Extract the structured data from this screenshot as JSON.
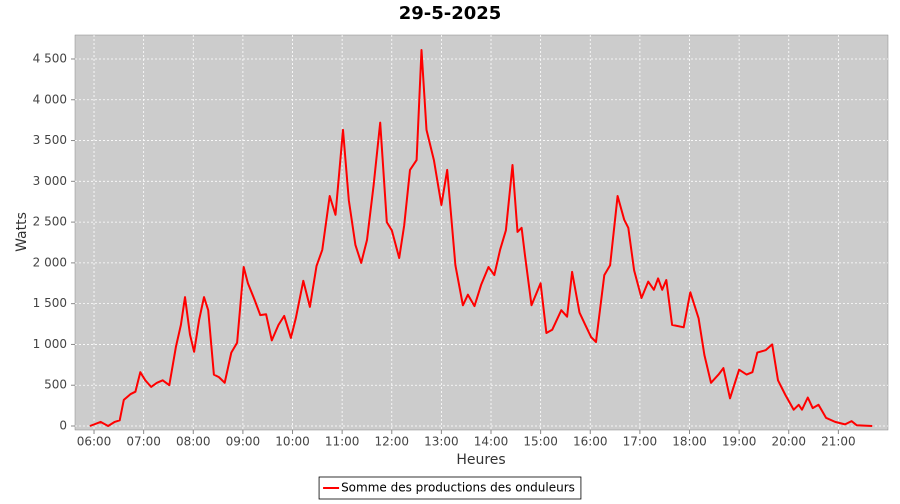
{
  "chart_data": {
    "type": "line",
    "title": "29-5-2025",
    "xlabel": "Heures",
    "ylabel": "Watts",
    "grid": true,
    "legend": "bottom",
    "xlim": [
      "05:37",
      "22:00"
    ],
    "xticks": [
      "06:00",
      "07:00",
      "08:00",
      "09:00",
      "10:00",
      "11:00",
      "12:00",
      "13:00",
      "14:00",
      "15:00",
      "16:00",
      "17:00",
      "18:00",
      "19:00",
      "20:00",
      "21:00"
    ],
    "ylim": [
      -49,
      4794
    ],
    "yticks": [
      0,
      500,
      {
        "value": 1000,
        "label": "1 000"
      },
      {
        "value": 1500,
        "label": "1 500"
      },
      {
        "value": 2000,
        "label": "2 000"
      },
      {
        "value": 2500,
        "label": "2 500"
      },
      {
        "value": 3000,
        "label": "3 000"
      },
      {
        "value": 3500,
        "label": "3 500"
      },
      {
        "value": 4000,
        "label": "4 000"
      },
      {
        "value": 4500,
        "label": "4 500"
      }
    ],
    "x": [
      "05:55",
      "06:08",
      "06:17",
      "06:25",
      "06:31",
      "06:36",
      "06:44",
      "06:50",
      "06:56",
      "07:02",
      "07:09",
      "07:16",
      "07:23",
      "07:31",
      "07:39",
      "07:45",
      "07:50",
      "07:56",
      "08:01",
      "08:07",
      "08:13",
      "08:18",
      "08:25",
      "08:31",
      "08:38",
      "08:46",
      "08:53",
      "09:01",
      "09:06",
      "09:14",
      "09:21",
      "09:28",
      "09:35",
      "09:43",
      "09:50",
      "09:58",
      "10:04",
      "10:13",
      "10:21",
      "10:29",
      "10:36",
      "10:45",
      "10:52",
      "11:01",
      "11:08",
      "11:16",
      "11:23",
      "11:30",
      "11:38",
      "11:46",
      "11:54",
      "12:00",
      "12:09",
      "12:15",
      "12:22",
      "12:30",
      "12:36",
      "12:42",
      "12:51",
      "13:00",
      "13:07",
      "13:17",
      "13:26",
      "13:32",
      "13:40",
      "13:48",
      "13:57",
      "14:04",
      "14:11",
      "14:18",
      "14:26",
      "14:32",
      "14:37",
      "14:41",
      "14:49",
      "15:00",
      "15:07",
      "15:14",
      "15:25",
      "15:32",
      "15:38",
      "15:47",
      "15:54",
      "16:01",
      "16:07",
      "16:17",
      "16:24",
      "16:33",
      "16:41",
      "16:46",
      "16:53",
      "17:02",
      "17:10",
      "17:17",
      "17:22",
      "17:27",
      "17:32",
      "17:39",
      "17:53",
      "18:01",
      "18:11",
      "18:18",
      "18:26",
      "18:35",
      "18:41",
      "18:49",
      "19:00",
      "19:09",
      "19:16",
      "19:22",
      "19:32",
      "19:40",
      "19:47",
      "19:56",
      "20:06",
      "20:12",
      "20:16",
      "20:23",
      "20:29",
      "20:36",
      "20:45",
      "20:56",
      "21:08",
      "21:16",
      "21:22",
      "21:41"
    ],
    "series": [
      {
        "name": "Somme des productions des onduleurs",
        "color": "#ff0000",
        "values": [
          0,
          50,
          0,
          50,
          70,
          320,
          390,
          420,
          660,
          560,
          480,
          530,
          560,
          500,
          970,
          1240,
          1580,
          1120,
          910,
          1300,
          1580,
          1420,
          630,
          600,
          530,
          900,
          1020,
          1950,
          1750,
          1550,
          1360,
          1370,
          1050,
          1240,
          1350,
          1080,
          1320,
          1780,
          1460,
          1960,
          2160,
          2820,
          2590,
          3630,
          2770,
          2220,
          2000,
          2280,
          2950,
          3720,
          2500,
          2400,
          2060,
          2460,
          3140,
          3260,
          4610,
          3630,
          3260,
          2710,
          3140,
          1970,
          1480,
          1610,
          1470,
          1730,
          1950,
          1850,
          2160,
          2400,
          3200,
          2380,
          2430,
          2100,
          1480,
          1750,
          1140,
          1180,
          1420,
          1340,
          1890,
          1390,
          1240,
          1090,
          1030,
          1850,
          1970,
          2820,
          2530,
          2430,
          1910,
          1570,
          1770,
          1670,
          1810,
          1670,
          1790,
          1240,
          1210,
          1640,
          1320,
          870,
          530,
          630,
          710,
          340,
          690,
          630,
          660,
          900,
          930,
          1000,
          560,
          380,
          200,
          260,
          200,
          350,
          220,
          260,
          100,
          50,
          20,
          60,
          10,
          0
        ]
      }
    ]
  }
}
